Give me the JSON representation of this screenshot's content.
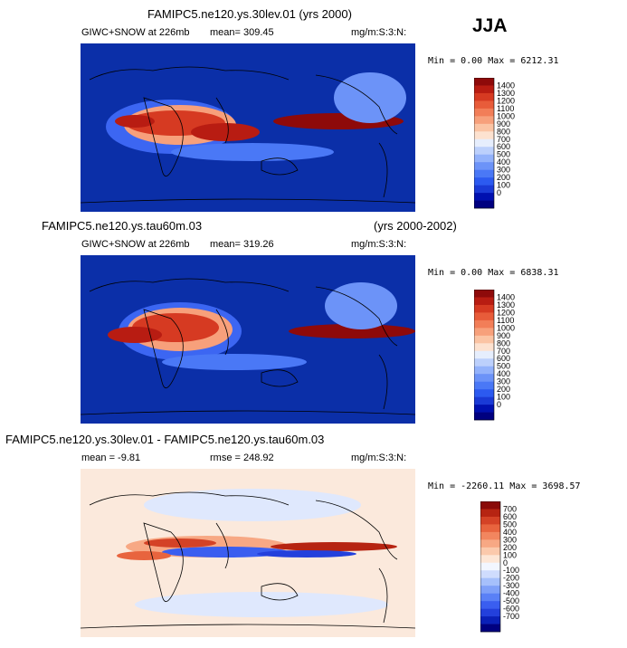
{
  "season": "JJA",
  "colors": {
    "ocean_low": "#0b2fa8",
    "land_line": "#000000",
    "abs_scale": [
      "#000080",
      "#0010b0",
      "#1a3ad6",
      "#2c5af0",
      "#4a78f6",
      "#6c93f8",
      "#93b2fb",
      "#bcd0fc",
      "#e6eefd",
      "#fde2d0",
      "#fbc4a4",
      "#f7a07b",
      "#f27e58",
      "#e85c3a",
      "#d63a22",
      "#b81c12",
      "#8e0a0a"
    ],
    "diff_scale": [
      "#000080",
      "#0a20b8",
      "#2340dc",
      "#3a5ef0",
      "#5a80f6",
      "#7fa0f8",
      "#a6c0fb",
      "#cfdcfd",
      "#f2f6ff",
      "#fde6d6",
      "#fbc9ac",
      "#f7a884",
      "#f2865f",
      "#e8643e",
      "#d44226",
      "#b62412",
      "#8a0a08"
    ]
  },
  "chart_data": [
    {
      "type": "heatmap",
      "title": "FAMIPC5.ne120.ys.30lev.01 (yrs 2000)",
      "subtitle_left": "GIWC+SNOW at 226mb",
      "mean_text": "mean= 309.45",
      "units": "mg/m:S:3:N:",
      "minmax_text": "Min =   0.00 Max = 6212.31",
      "colorbar_labels": [
        "1400",
        "1300",
        "1200",
        "1100",
        "1000",
        "900",
        "800",
        "700",
        "600",
        "500",
        "400",
        "300",
        "200",
        "100",
        "0"
      ]
    },
    {
      "type": "heatmap",
      "title": "FAMIPC5.ne120.ys.tau60m.03",
      "title_right": "(yrs 2000-2002)",
      "subtitle_left": "GIWC+SNOW at 226mb",
      "mean_text": "mean= 319.26",
      "units": "mg/m:S:3:N:",
      "minmax_text": "Min =   0.00 Max = 6838.31",
      "colorbar_labels": [
        "1400",
        "1300",
        "1200",
        "1100",
        "1000",
        "900",
        "800",
        "700",
        "600",
        "500",
        "400",
        "300",
        "200",
        "100",
        "0"
      ]
    },
    {
      "type": "heatmap",
      "title": "FAMIPC5.ne120.ys.30lev.01 - FAMIPC5.ne120.ys.tau60m.03",
      "mean_text": "mean =   -9.81",
      "rmse_text": "rmse =  248.92",
      "units": "mg/m:S:3:N:",
      "minmax_text": "Min = -2260.11 Max = 3698.57",
      "colorbar_labels": [
        "700",
        "600",
        "500",
        "400",
        "300",
        "200",
        "100",
        "0",
        "-100",
        "-200",
        "-300",
        "-400",
        "-500",
        "-600",
        "-700"
      ]
    }
  ]
}
